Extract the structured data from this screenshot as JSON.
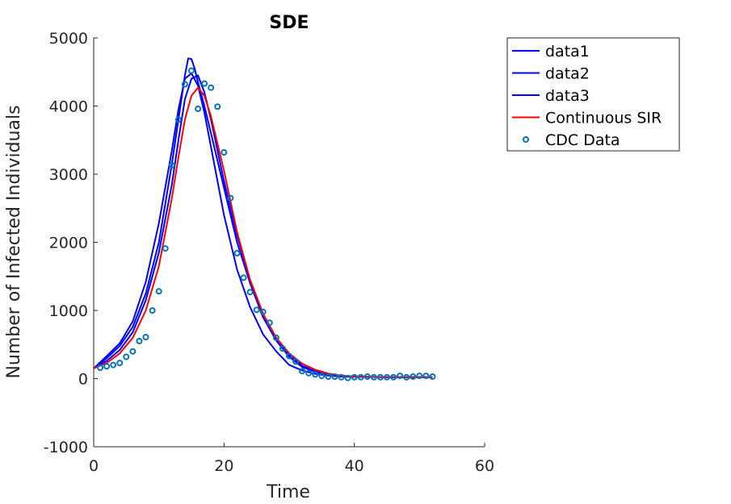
{
  "chart_data": {
    "type": "line",
    "title": "SDE",
    "xlabel": "Time",
    "ylabel": "Number of Infected Individuals",
    "xlim": [
      0,
      60
    ],
    "ylim": [
      -1000,
      5000
    ],
    "xticks": [
      0,
      20,
      40,
      60
    ],
    "yticks": [
      -1000,
      0,
      1000,
      2000,
      3000,
      4000,
      5000
    ],
    "grid": false,
    "legend_position": "outside-top-right",
    "series": [
      {
        "name": "data1",
        "kind": "line",
        "color": "#0000ff",
        "x": [
          0,
          2,
          4,
          6,
          8,
          10,
          12,
          13,
          14,
          14.5,
          15,
          15.5,
          16,
          17,
          18,
          20,
          22,
          24,
          26,
          28,
          30,
          32,
          34,
          36,
          38,
          40,
          45,
          52
        ],
        "y": [
          150,
          300,
          480,
          760,
          1250,
          2000,
          3150,
          3800,
          4450,
          4700,
          4690,
          4550,
          4350,
          4000,
          3600,
          2800,
          2000,
          1400,
          900,
          560,
          320,
          170,
          100,
          60,
          40,
          30,
          20,
          20
        ]
      },
      {
        "name": "data2",
        "kind": "line",
        "color": "#0000ff",
        "x": [
          0,
          2,
          4,
          6,
          8,
          10,
          12,
          13,
          14,
          15,
          16,
          17,
          18,
          20,
          22,
          24,
          26,
          28,
          30,
          32,
          34,
          36,
          38,
          40,
          45,
          52
        ],
        "y": [
          150,
          330,
          520,
          840,
          1420,
          2280,
          3350,
          3950,
          4400,
          4480,
          4300,
          3900,
          3400,
          2400,
          1600,
          1050,
          650,
          400,
          200,
          120,
          70,
          45,
          30,
          25,
          20,
          20
        ]
      },
      {
        "name": "data3",
        "kind": "line",
        "color": "#0000ff",
        "x": [
          0,
          2,
          4,
          6,
          8,
          10,
          12,
          13,
          14,
          15,
          16,
          17,
          18,
          20,
          22,
          24,
          26,
          28,
          30,
          32,
          34,
          36,
          38,
          40,
          45,
          52
        ],
        "y": [
          150,
          260,
          420,
          680,
          1150,
          1850,
          2850,
          3500,
          4100,
          4400,
          4450,
          4200,
          3800,
          2900,
          2100,
          1450,
          950,
          600,
          350,
          190,
          110,
          65,
          40,
          30,
          20,
          20
        ]
      },
      {
        "name": "Continuous SIR",
        "kind": "line",
        "color": "#ff0000",
        "x": [
          0,
          2,
          4,
          6,
          8,
          10,
          12,
          13,
          14,
          15,
          16,
          17,
          18,
          20,
          22,
          24,
          26,
          28,
          30,
          32,
          34,
          36,
          38,
          40,
          42,
          45,
          52
        ],
        "y": [
          150,
          230,
          370,
          600,
          1000,
          1650,
          2650,
          3250,
          3800,
          4150,
          4270,
          4150,
          3850,
          3050,
          2150,
          1450,
          950,
          600,
          370,
          220,
          130,
          75,
          45,
          30,
          25,
          20,
          20
        ]
      },
      {
        "name": "CDC Data",
        "kind": "scatter",
        "color": "#0072bd",
        "x": [
          1,
          2,
          3,
          4,
          5,
          6,
          7,
          8,
          9,
          10,
          11,
          12,
          13,
          14,
          15,
          16,
          17,
          18,
          19,
          20,
          21,
          22,
          23,
          24,
          25,
          26,
          27,
          28,
          29,
          30,
          31,
          32,
          33,
          34,
          35,
          36,
          37,
          38,
          39,
          40,
          41,
          42,
          43,
          44,
          45,
          46,
          47,
          48,
          49,
          50,
          51,
          52
        ],
        "y": [
          160,
          180,
          200,
          230,
          320,
          400,
          550,
          610,
          1000,
          1280,
          1910,
          3130,
          3800,
          4320,
          4520,
          3960,
          4330,
          4270,
          3990,
          3320,
          2650,
          1840,
          1480,
          1270,
          1010,
          980,
          820,
          600,
          440,
          330,
          250,
          110,
          80,
          60,
          40,
          30,
          30,
          20,
          10,
          20,
          20,
          30,
          20,
          20,
          20,
          20,
          40,
          20,
          30,
          40,
          40,
          30
        ]
      }
    ]
  }
}
